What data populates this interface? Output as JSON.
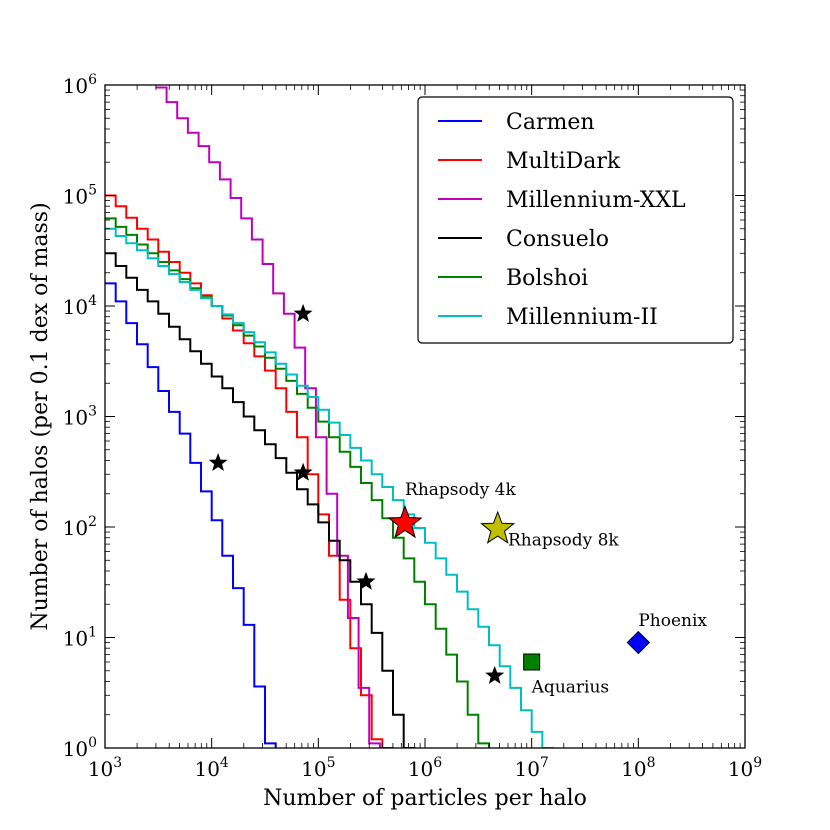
{
  "chart_data": {
    "type": "line",
    "subtype": "step",
    "scale": "log-log",
    "title": "",
    "xlabel": "Number of particles per halo",
    "ylabel": "Number of halos (per 0.1 dex of mass)",
    "xlim": [
      1000,
      1000000000
    ],
    "ylim": [
      1,
      1000000
    ],
    "x_ticks": [
      {
        "base": "10",
        "exp": "3",
        "value": 1000
      },
      {
        "base": "10",
        "exp": "4",
        "value": 10000
      },
      {
        "base": "10",
        "exp": "5",
        "value": 100000
      },
      {
        "base": "10",
        "exp": "6",
        "value": 1000000
      },
      {
        "base": "10",
        "exp": "7",
        "value": 10000000
      },
      {
        "base": "10",
        "exp": "8",
        "value": 100000000
      },
      {
        "base": "10",
        "exp": "9",
        "value": 1000000000
      }
    ],
    "y_ticks": [
      {
        "base": "10",
        "exp": "0",
        "value": 1
      },
      {
        "base": "10",
        "exp": "1",
        "value": 10
      },
      {
        "base": "10",
        "exp": "2",
        "value": 100
      },
      {
        "base": "10",
        "exp": "3",
        "value": 1000
      },
      {
        "base": "10",
        "exp": "4",
        "value": 10000
      },
      {
        "base": "10",
        "exp": "5",
        "value": 100000
      },
      {
        "base": "10",
        "exp": "6",
        "value": 1000000
      }
    ],
    "legend_position": "top-right",
    "series": [
      {
        "name": "Carmen",
        "color": "#0000ff",
        "x_start": 1000,
        "bin_dex": 0.1,
        "values": [
          16000,
          11000,
          7000,
          4500,
          2800,
          1700,
          1100,
          700,
          380,
          210,
          115,
          55,
          28,
          13,
          3.6,
          1.1
        ]
      },
      {
        "name": "MultiDark",
        "color": "#ff0000",
        "x_start": 1000,
        "bin_dex": 0.1,
        "values": [
          100000,
          80000,
          63000,
          50000,
          40000,
          31000,
          25000,
          20000,
          16000,
          12500,
          10000,
          7700,
          6000,
          4600,
          3500,
          2600,
          1800,
          1100,
          650,
          300,
          130,
          55,
          22,
          8,
          3,
          1.2,
          1
        ]
      },
      {
        "name": "Millennium-XXL",
        "color": "#bf00bf",
        "x_start": 3000,
        "bin_dex": 0.1,
        "values": [
          950000,
          700000,
          500000,
          370000,
          280000,
          200000,
          140000,
          95000,
          62000,
          40000,
          24000,
          13000,
          8500,
          4200,
          1800,
          650,
          200,
          55,
          15,
          3.5,
          1.1
        ]
      },
      {
        "name": "Consuelo",
        "color": "#000000",
        "x_start": 1000,
        "bin_dex": 0.1,
        "values": [
          30000,
          23000,
          18000,
          14000,
          11000,
          8500,
          6500,
          5000,
          3900,
          3000,
          2300,
          1800,
          1350,
          1000,
          750,
          560,
          420,
          310,
          220,
          160,
          110,
          75,
          50,
          32,
          20,
          11,
          5,
          2,
          1
        ]
      },
      {
        "name": "Bolshoi",
        "color": "#008000",
        "x_start": 1000,
        "bin_dex": 0.1,
        "values": [
          62000,
          52000,
          44000,
          36000,
          30000,
          25000,
          21000,
          17500,
          14500,
          12000,
          10000,
          8200,
          6700,
          5400,
          4300,
          3400,
          2700,
          2100,
          1600,
          1200,
          900,
          650,
          480,
          350,
          250,
          175,
          120,
          80,
          52,
          32,
          20,
          12,
          7,
          4,
          2,
          1.1
        ]
      },
      {
        "name": "Millennium-II",
        "color": "#00bfbf",
        "x_start": 1000,
        "bin_dex": 0.1,
        "values": [
          50000,
          43000,
          37000,
          32000,
          27000,
          23000,
          19500,
          16500,
          14000,
          11800,
          10000,
          8400,
          7000,
          5800,
          4700,
          3800,
          3000,
          2400,
          1900,
          1500,
          1150,
          880,
          680,
          520,
          400,
          300,
          230,
          175,
          130,
          98,
          72,
          52,
          37,
          26,
          18,
          12.5,
          8.5,
          5.5,
          3.5,
          2.2,
          1.4,
          1
        ]
      }
    ],
    "markers": [
      {
        "name": "star-carmen",
        "shape": "star",
        "color": "#000000",
        "x": 11500,
        "y": 380,
        "size": "small"
      },
      {
        "name": "star-multidark",
        "shape": "star",
        "color": "#000000",
        "x": 72000,
        "y": 310,
        "size": "small"
      },
      {
        "name": "star-millennium-xxl",
        "shape": "star",
        "color": "#000000",
        "x": 72000,
        "y": 8500,
        "size": "small"
      },
      {
        "name": "star-consuelo",
        "shape": "star",
        "color": "#000000",
        "x": 280000,
        "y": 32,
        "size": "small"
      },
      {
        "name": "star-bolshoi",
        "shape": "star",
        "color": "#000000",
        "x": 4500000,
        "y": 4.5,
        "size": "small"
      },
      {
        "name": "star-rhapsody-4k",
        "shape": "star",
        "color": "#ff0000",
        "x": 650000,
        "y": 108,
        "size": "large"
      },
      {
        "name": "star-rhapsody-8k",
        "shape": "star",
        "color": "#bfbf00",
        "x": 4800000,
        "y": 96,
        "size": "large"
      },
      {
        "name": "square-aquarius",
        "shape": "square",
        "color": "#008000",
        "x": 10000000,
        "y": 6,
        "size": "medium"
      },
      {
        "name": "diamond-phoenix",
        "shape": "diamond",
        "color": "#0000ff",
        "x": 100000000,
        "y": 9,
        "size": "medium"
      }
    ],
    "annotations": [
      {
        "name": "annotation-rhapsody-4k",
        "text": "Rhapsody 4k",
        "x": 650000,
        "y": 215,
        "anchor": "start-center"
      },
      {
        "name": "annotation-rhapsody-8k",
        "text": "Rhapsody 8k",
        "x": 6000000,
        "y": 75,
        "anchor": "start"
      },
      {
        "name": "annotation-aquarius",
        "text": "Aquarius",
        "x": 10000000,
        "y": 3.5,
        "anchor": "start"
      },
      {
        "name": "annotation-phoenix",
        "text": "Phoenix",
        "x": 100000000,
        "y": 14,
        "anchor": "start"
      }
    ]
  }
}
